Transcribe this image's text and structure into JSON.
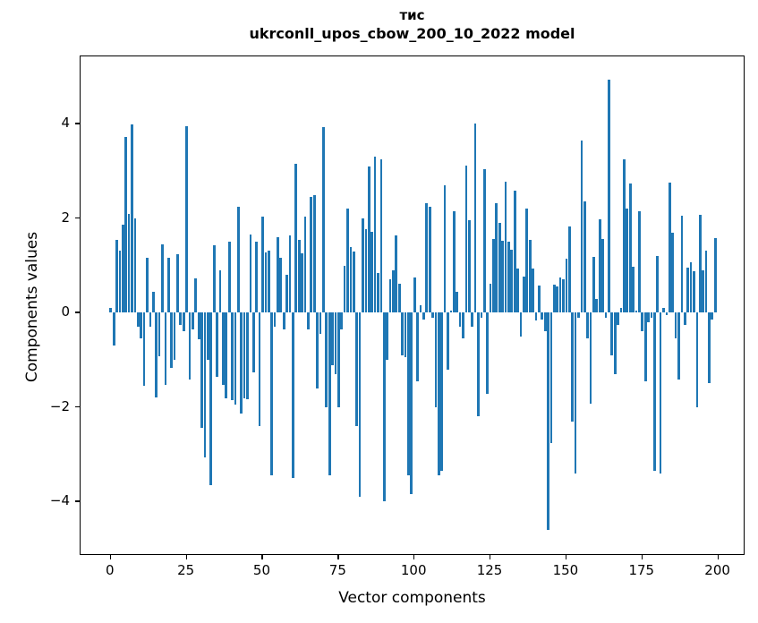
{
  "figure": {
    "title_line1": "тис",
    "title_line2": "ukrconll_upos_cbow_200_10_2022 model",
    "background_color": "#ffffff",
    "text_color": "#000000"
  },
  "chart_data": {
    "type": "bar",
    "title": "тис\nukrconll_upos_cbow_200_10_2022 model",
    "xlabel": "Vector components",
    "ylabel": "Components values",
    "bar_color": "#1f77b4",
    "grid": false,
    "legend": "none",
    "xlim": [
      -9.95,
      208.95
    ],
    "ylim": [
      -5.15,
      5.43
    ],
    "x_ticks": [
      0,
      25,
      50,
      75,
      100,
      125,
      150,
      175,
      200
    ],
    "x_tick_labels": [
      "0",
      "25",
      "50",
      "75",
      "100",
      "125",
      "150",
      "175",
      "200"
    ],
    "y_ticks": [
      4,
      2,
      0,
      -2,
      -4
    ],
    "y_tick_labels": [
      "4",
      "2",
      "0",
      "−2",
      "−4"
    ],
    "x": "component index 0..199",
    "values": [
      0.1,
      -0.7,
      1.55,
      1.32,
      1.86,
      3.72,
      2.1,
      3.98,
      2.0,
      -0.3,
      -0.55,
      -1.55,
      1.17,
      -0.29,
      0.44,
      -1.8,
      -0.92,
      1.45,
      -1.52,
      1.16,
      -1.17,
      -1.0,
      1.24,
      -0.26,
      -0.4,
      3.96,
      -1.41,
      -0.35,
      0.72,
      -0.56,
      -2.44,
      -3.07,
      -1.0,
      -3.65,
      1.43,
      -1.35,
      0.89,
      -1.52,
      -1.81,
      1.51,
      -1.85,
      -1.95,
      2.25,
      -2.13,
      -1.81,
      -1.83,
      1.65,
      -1.27,
      1.5,
      -2.4,
      2.04,
      1.27,
      1.31,
      -3.45,
      -0.3,
      1.6,
      1.17,
      -0.35,
      0.8,
      1.63,
      -3.5,
      3.15,
      1.55,
      1.26,
      2.03,
      -0.35,
      2.45,
      2.5,
      -1.6,
      -0.44,
      3.93,
      -2.0,
      -3.45,
      -1.11,
      -1.3,
      -2.0,
      -0.35,
      1.0,
      2.2,
      1.4,
      1.3,
      -2.4,
      -3.9,
      2.0,
      1.78,
      3.1,
      1.72,
      3.3,
      0.85,
      3.25,
      -4.0,
      -1.0,
      0.7,
      0.9,
      1.63,
      0.61,
      -0.9,
      -0.95,
      -3.45,
      -3.85,
      0.74,
      -1.45,
      0.15,
      -0.15,
      2.32,
      2.24,
      -0.1,
      -2.0,
      -3.45,
      -3.35,
      2.7,
      -1.2,
      0.05,
      2.15,
      0.45,
      -0.3,
      -0.55,
      3.11,
      1.96,
      -0.29,
      4.0,
      -2.19,
      -0.1,
      3.05,
      -1.71,
      0.61,
      1.57,
      2.33,
      1.91,
      1.52,
      2.77,
      1.5,
      1.33,
      2.58,
      0.93,
      -0.51,
      0.77,
      2.2,
      1.55,
      0.94,
      -0.16,
      0.57,
      -0.15,
      -0.4,
      -4.6,
      -2.76,
      0.6,
      0.55,
      0.75,
      0.7,
      1.15,
      1.83,
      -2.3,
      -3.4,
      -0.1,
      3.65,
      2.35,
      -0.54,
      -1.93,
      1.18,
      0.3,
      1.98,
      1.56,
      -0.1,
      4.93,
      -0.9,
      -1.3,
      -0.25,
      0.1,
      3.25,
      2.2,
      2.73,
      0.97,
      0.05,
      2.15,
      -0.39,
      -1.46,
      -0.2,
      -0.1,
      -3.35,
      1.2,
      -3.4,
      0.1,
      -0.05,
      2.75,
      1.7,
      -0.55,
      -1.41,
      2.05,
      -0.26,
      0.95,
      1.07,
      0.88,
      -2.0,
      2.07,
      0.89,
      1.32,
      -1.5,
      -0.15,
      1.58
    ]
  },
  "axes": {
    "xlabel": "Vector components",
    "ylabel": "Components values"
  }
}
